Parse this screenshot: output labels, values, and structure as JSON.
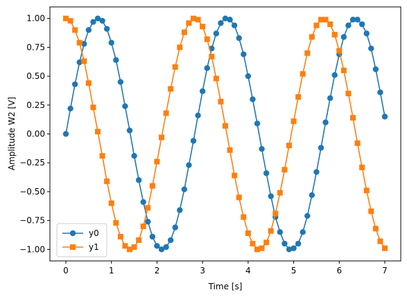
{
  "chart_data": {
    "type": "line",
    "title": "",
    "xlabel": "Time [s]",
    "ylabel": "Amplitude W2 [V]",
    "xlim": [
      -0.35,
      7.35
    ],
    "ylim": [
      -1.1,
      1.1
    ],
    "xticks": [
      0,
      1,
      2,
      3,
      4,
      5,
      6,
      7
    ],
    "xtick_labels": [
      "0",
      "1",
      "2",
      "3",
      "4",
      "5",
      "6",
      "7"
    ],
    "yticks": [
      -1.0,
      -0.75,
      -0.5,
      -0.25,
      0.0,
      0.25,
      0.5,
      0.75,
      1.0
    ],
    "ytick_labels": [
      "−1.00",
      "−0.75",
      "−0.50",
      "−0.25",
      "0.00",
      "0.25",
      "0.50",
      "0.75",
      "1.00"
    ],
    "grid": false,
    "legend_position": "lower-left",
    "x": [
      0.0,
      0.1,
      0.2,
      0.3,
      0.4,
      0.5,
      0.6,
      0.7,
      0.8,
      0.9,
      1.0,
      1.1,
      1.2,
      1.3,
      1.4,
      1.5,
      1.6,
      1.7,
      1.8,
      1.9,
      2.0,
      2.1,
      2.2,
      2.3,
      2.4,
      2.5,
      2.6,
      2.7,
      2.8,
      2.9,
      3.0,
      3.1,
      3.2,
      3.3,
      3.4,
      3.5,
      3.6,
      3.7,
      3.8,
      3.9,
      4.0,
      4.1,
      4.2,
      4.3,
      4.4,
      4.5,
      4.6,
      4.7,
      4.8,
      4.9,
      5.0,
      5.1,
      5.2,
      5.3,
      5.4,
      5.5,
      5.6,
      5.7,
      5.8,
      5.9,
      6.0,
      6.1,
      6.2,
      6.3,
      6.4,
      6.5,
      6.6,
      6.7,
      6.8,
      6.9,
      7.0
    ],
    "series": [
      {
        "name": "y0",
        "color": "#1f77b4",
        "marker": "circle",
        "values": [
          0.0,
          0.22,
          0.43,
          0.62,
          0.78,
          0.9,
          0.97,
          1.0,
          0.98,
          0.91,
          0.79,
          0.64,
          0.45,
          0.24,
          0.03,
          -0.19,
          -0.4,
          -0.59,
          -0.76,
          -0.89,
          -0.97,
          -1.0,
          -0.98,
          -0.92,
          -0.81,
          -0.66,
          -0.48,
          -0.27,
          -0.06,
          0.16,
          0.37,
          0.57,
          0.74,
          0.87,
          0.96,
          1.0,
          0.99,
          0.94,
          0.83,
          0.69,
          0.5,
          0.3,
          0.09,
          -0.13,
          -0.34,
          -0.54,
          -0.72,
          -0.85,
          -0.95,
          -1.0,
          -0.99,
          -0.95,
          -0.85,
          -0.71,
          -0.53,
          -0.33,
          -0.12,
          0.1,
          0.31,
          0.51,
          0.69,
          0.84,
          0.94,
          0.99,
          0.99,
          0.95,
          0.87,
          0.74,
          0.56,
          0.36,
          0.15
        ]
      },
      {
        "name": "y1",
        "color": "#ff7f0e",
        "marker": "square",
        "values": [
          1.0,
          0.98,
          0.9,
          0.79,
          0.63,
          0.44,
          0.23,
          0.02,
          -0.19,
          -0.41,
          -0.6,
          -0.77,
          -0.89,
          -0.97,
          -1.0,
          -0.98,
          -0.92,
          -0.8,
          -0.64,
          -0.45,
          -0.24,
          -0.03,
          0.18,
          0.39,
          0.58,
          0.75,
          0.88,
          0.96,
          1.0,
          0.99,
          0.93,
          0.82,
          0.67,
          0.48,
          0.28,
          0.07,
          -0.14,
          -0.36,
          -0.55,
          -0.72,
          -0.86,
          -0.95,
          -1.0,
          -0.99,
          -0.94,
          -0.84,
          -0.69,
          -0.51,
          -0.31,
          -0.1,
          0.11,
          0.32,
          0.52,
          0.7,
          0.84,
          0.94,
          0.99,
          0.99,
          0.95,
          0.86,
          0.72,
          0.55,
          0.35,
          0.14,
          -0.08,
          -0.29,
          -0.49,
          -0.67,
          -0.82,
          -0.93,
          -0.99
        ]
      }
    ]
  }
}
